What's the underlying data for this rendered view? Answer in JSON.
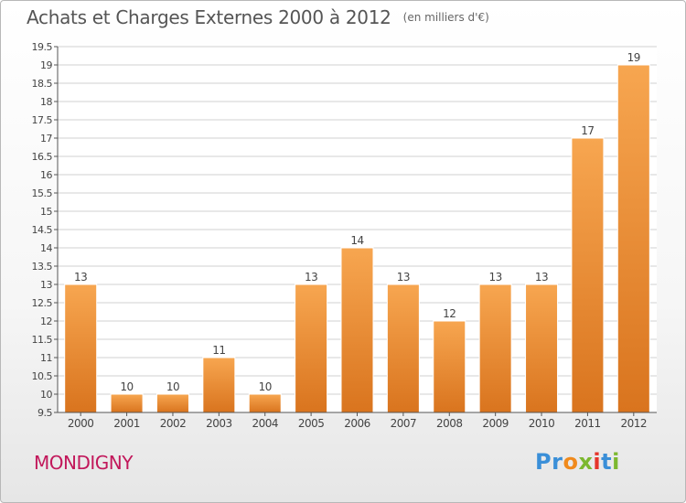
{
  "header": {
    "title": "Achats et Charges Externes 2000 à 2012",
    "subtitle": "(en milliers d'€)"
  },
  "footer": {
    "commune": "MONDIGNY",
    "logo_letters": [
      {
        "char": "P",
        "color": "#3a8fd8"
      },
      {
        "char": "r",
        "color": "#3a8fd8"
      },
      {
        "char": "o",
        "color": "#f08a1c"
      },
      {
        "char": "x",
        "color": "#7cb82f"
      },
      {
        "char": "i",
        "color": "#e5352b"
      },
      {
        "char": "t",
        "color": "#3a8fd8"
      },
      {
        "char": "i",
        "color": "#7cb82f"
      }
    ]
  },
  "colors": {
    "bar_light": "#f7a650",
    "bar_dark": "#d9741e",
    "grid": "#d0d0d0",
    "axis": "#555555",
    "label": "#444444"
  },
  "chart_data": {
    "type": "bar",
    "title": "Achats et Charges Externes 2000 à 2012",
    "subtitle": "(en milliers d'€)",
    "categories": [
      "2000",
      "2001",
      "2002",
      "2003",
      "2004",
      "2005",
      "2006",
      "2007",
      "2008",
      "2009",
      "2010",
      "2011",
      "2012"
    ],
    "values": [
      13,
      10,
      10,
      11,
      10,
      13,
      14,
      13,
      12,
      13,
      13,
      17,
      19
    ],
    "ylim": [
      9.5,
      19.5
    ],
    "yticks": [
      9.5,
      10,
      10.5,
      11,
      11.5,
      12,
      12.5,
      13,
      13.5,
      14,
      14.5,
      15,
      15.5,
      16,
      16.5,
      17,
      17.5,
      18,
      18.5,
      19,
      19.5
    ],
    "ytick_labels": [
      "9.5",
      "10",
      "10.5",
      "11",
      "11.5",
      "12",
      "12.5",
      "13",
      "13.5",
      "14",
      "14.5",
      "15",
      "15.5",
      "16",
      "16.5",
      "17",
      "17.5",
      "18",
      "18.5",
      "19",
      "19.5"
    ],
    "data_labels": [
      "13",
      "10",
      "10",
      "11",
      "10",
      "13",
      "14",
      "13",
      "12",
      "13",
      "13",
      "17",
      "19"
    ],
    "grid": true,
    "legend": "none"
  }
}
